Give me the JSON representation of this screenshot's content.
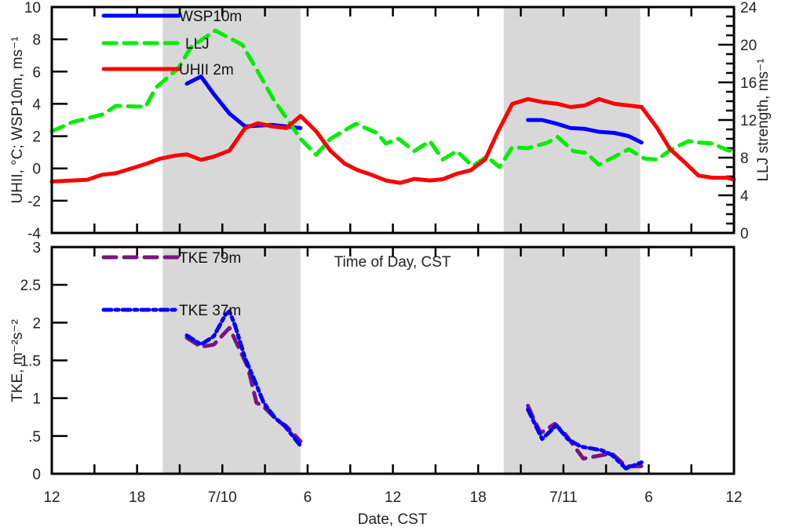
{
  "chart_data": [
    {
      "type": "line",
      "panel": "top",
      "x_unit": "hours since 12 CST 7/9",
      "xlim": [
        0,
        48
      ],
      "x_ticks": [
        0,
        6,
        12,
        18,
        24,
        30,
        36,
        42,
        48
      ],
      "x_tick_labels": [
        "12",
        "18",
        "7/10",
        "6",
        "12",
        "18",
        "7/11",
        "6",
        "12"
      ],
      "xlabel_inline": "Time of Day, CST",
      "ylabel": "UHII, °C; WSP10m, ms⁻¹",
      "ylim": [
        -4,
        10
      ],
      "y_ticks": [
        -4,
        -2,
        0,
        2,
        4,
        6,
        8,
        10
      ],
      "y_tick_labels": [
        "-4",
        "-2",
        "0",
        "2",
        "4",
        "6",
        "8",
        "10"
      ],
      "y2label": "LLJ strength, ms⁻¹",
      "y2lim": [
        0,
        24
      ],
      "y2_ticks": [
        0,
        4,
        8,
        12,
        16,
        20,
        24
      ],
      "y2_tick_labels": [
        "0",
        "4",
        "8",
        "12",
        "16",
        "20",
        "24"
      ],
      "shaded_periods": [
        [
          7.8,
          17.5
        ],
        [
          31.8,
          41.4
        ]
      ],
      "legend_placement": "top-left",
      "series": [
        {
          "name": "WSP10m",
          "axis": "left",
          "color": "#0000ff",
          "style": "solid",
          "x": [
            9.5,
            10.5,
            11.4,
            12.5,
            13.6,
            14.5,
            15.5,
            16.5,
            17.5,
            null,
            33.5,
            34.5,
            35.6,
            36.5,
            37.5,
            38.5,
            39.6,
            40.6,
            41.5
          ],
          "y": [
            5.25,
            5.7,
            4.6,
            3.4,
            2.6,
            2.65,
            2.7,
            2.6,
            2.5,
            null,
            3.0,
            3.0,
            2.75,
            2.5,
            2.45,
            2.27,
            2.2,
            2.0,
            1.6
          ]
        },
        {
          "name": "LLJ",
          "axis": "right",
          "color": "#00ee00",
          "style": "dashed",
          "x": [
            0,
            1.5,
            3.6,
            4.5,
            6.6,
            7.3,
            8.9,
            9.8,
            11.5,
            13.4,
            14.4,
            15.6,
            16.6,
            17.5,
            18.6,
            19.6,
            21.4,
            22.9,
            23.5,
            24.4,
            25.5,
            26.6,
            27.5,
            28.5,
            29.6,
            30.6,
            31.5,
            32.4,
            33.5,
            34.9,
            35.6,
            36.7,
            37.6,
            38.5,
            39.6,
            40.6,
            41.7,
            42.6,
            43.6,
            44.8,
            45.6,
            46.5,
            47.6,
            48
          ],
          "y": [
            10.8,
            11.8,
            12.6,
            13.5,
            13.4,
            15.4,
            17.5,
            19.75,
            21.5,
            20,
            17.4,
            14.2,
            12,
            10,
            8.3,
            10,
            11.6,
            10.6,
            9.5,
            10,
            8.7,
            9.75,
            7.8,
            8.7,
            7.1,
            8.1,
            7,
            9.1,
            9.0,
            9.6,
            10.2,
            8.7,
            8.5,
            7.25,
            8.1,
            8.9,
            7.9,
            7.8,
            8.9,
            9.75,
            9.6,
            9.5,
            8.75,
            8.8
          ]
        },
        {
          "name": "UHII 2m",
          "axis": "left",
          "color": "#ff0000",
          "style": "solid",
          "x": [
            0,
            0.2,
            2.5,
            3.5,
            4.5,
            5.6,
            6.7,
            7.6,
            8.7,
            9.5,
            10.5,
            11.4,
            12.5,
            13.6,
            14.5,
            15.5,
            16.5,
            17.5,
            18.6,
            19.6,
            20.6,
            21.5,
            22.5,
            23.5,
            24.5,
            25.5,
            26.6,
            27.5,
            28.5,
            29.5,
            30.5,
            31.4,
            32.4,
            33.5,
            34.6,
            35.6,
            36.5,
            37.5,
            38.5,
            39.6,
            40.6,
            41.5,
            42.6,
            43.5,
            44.5,
            45.5,
            46.5,
            47.5,
            48
          ],
          "y": [
            -0.83,
            -0.8,
            -0.7,
            -0.4,
            -0.3,
            0,
            0.3,
            0.6,
            0.8,
            0.87,
            0.53,
            0.73,
            1.1,
            2.5,
            2.8,
            2.6,
            2.5,
            3.25,
            2.3,
            1.1,
            0.3,
            -0.1,
            -0.4,
            -0.75,
            -0.9,
            -0.65,
            -0.75,
            -0.67,
            -0.33,
            -0.1,
            0.57,
            2.3,
            4.0,
            4.3,
            4.1,
            4.0,
            3.8,
            3.9,
            4.3,
            4.0,
            3.9,
            3.8,
            2.5,
            1.2,
            0.4,
            -0.44,
            -0.58,
            -0.58,
            -0.7
          ]
        }
      ]
    },
    {
      "type": "line",
      "panel": "bottom",
      "x_unit": "hours since 12 CST 7/9",
      "xlim": [
        0,
        48
      ],
      "x_ticks": [
        0,
        6,
        12,
        18,
        24,
        30,
        36,
        42,
        48
      ],
      "x_tick_labels": [
        "12",
        "18",
        "7/10",
        "6",
        "12",
        "18",
        "7/11",
        "6",
        "12"
      ],
      "xlabel": "Date, CST",
      "ylabel": "TKE, m⁻²s⁻²",
      "ylim": [
        0,
        3
      ],
      "y_ticks": [
        0,
        0.5,
        1,
        1.5,
        2,
        2.5,
        3
      ],
      "y_tick_labels": [
        "0",
        ".5",
        "1",
        "1.5",
        "2",
        "2.5",
        "3"
      ],
      "shaded_periods": [
        [
          7.8,
          17.5
        ],
        [
          31.8,
          41.4
        ]
      ],
      "legend_placement": "top-left",
      "series": [
        {
          "name": "TKE 79m",
          "color": "#7a1580",
          "style": "dashed",
          "x": [
            9.5,
            10.5,
            11.4,
            12.5,
            13.2,
            13.8,
            14.4,
            14.9,
            15.9,
            16.5,
            17.5,
            null,
            33.5,
            33.9,
            34.4,
            35.4,
            36.1,
            37.4,
            39.4,
            40.4,
            41.5
          ],
          "y": [
            1.8,
            1.68,
            1.71,
            1.93,
            1.65,
            1.41,
            0.94,
            0.89,
            0.7,
            0.63,
            0.43,
            null,
            0.9,
            0.73,
            0.54,
            0.66,
            0.53,
            0.2,
            0.27,
            0.1,
            0.1
          ]
        },
        {
          "name": "TKE 37m",
          "color": "#0000ff",
          "style": "dash-dot",
          "x": [
            9.5,
            10.5,
            11.4,
            12.2,
            12.5,
            12.9,
            13.6,
            14.3,
            14.9,
            15.7,
            16.4,
            17.5,
            null,
            33.5,
            34.5,
            35.5,
            36.3,
            37.2,
            38.7,
            39.4,
            40.4,
            41.5
          ],
          "y": [
            1.83,
            1.71,
            1.82,
            2.1,
            2.15,
            1.96,
            1.53,
            1.22,
            0.94,
            0.74,
            0.63,
            0.37,
            null,
            0.85,
            0.46,
            0.64,
            0.46,
            0.36,
            0.31,
            0.25,
            0.07,
            0.15
          ]
        }
      ]
    }
  ]
}
